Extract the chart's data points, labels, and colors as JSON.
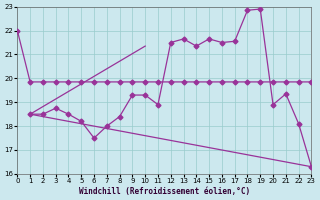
{
  "xlabel": "Windchill (Refroidissement éolien,°C)",
  "bg_color": "#cce8ee",
  "grid_color": "#99cccc",
  "line_color": "#993399",
  "xlim": [
    0,
    23
  ],
  "ylim": [
    16,
    23
  ],
  "xticks": [
    0,
    1,
    2,
    3,
    4,
    5,
    6,
    7,
    8,
    9,
    10,
    11,
    12,
    13,
    14,
    15,
    16,
    17,
    18,
    19,
    20,
    21,
    22,
    23
  ],
  "yticks": [
    16,
    17,
    18,
    19,
    20,
    21,
    22,
    23
  ],
  "line1_x": [
    0,
    1,
    2,
    3,
    4,
    5,
    6,
    7,
    8,
    9,
    10,
    11,
    12,
    13,
    14,
    15,
    16,
    17,
    18,
    19,
    20,
    21,
    22,
    23
  ],
  "line1_y": [
    22.0,
    19.85,
    19.85,
    19.85,
    19.85,
    19.85,
    19.85,
    19.85,
    19.85,
    19.85,
    19.85,
    19.85,
    19.85,
    19.85,
    19.85,
    19.85,
    19.85,
    19.85,
    19.85,
    19.85,
    19.85,
    19.85,
    19.85,
    19.85
  ],
  "line2_x": [
    1,
    2,
    3,
    4,
    5,
    6,
    7,
    8,
    9,
    10,
    11,
    12,
    13,
    14,
    15,
    16,
    17,
    18,
    19,
    20,
    21,
    22,
    23
  ],
  "line2_y": [
    18.5,
    18.5,
    18.75,
    18.5,
    18.2,
    17.5,
    18.0,
    18.4,
    19.3,
    19.3,
    18.9,
    21.5,
    21.65,
    21.35,
    21.65,
    21.5,
    21.55,
    22.85,
    22.9,
    18.9,
    19.35,
    18.1,
    16.3
  ],
  "line3_x": [
    1,
    10
  ],
  "line3_y": [
    18.5,
    21.35
  ],
  "line4_x": [
    1,
    23
  ],
  "line4_y": [
    18.5,
    16.3
  ]
}
